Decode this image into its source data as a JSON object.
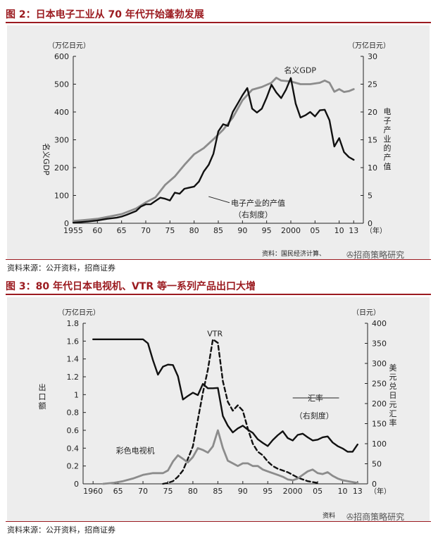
{
  "figure1": {
    "title": "图 2：日本电子工业从 70 年代开始蓬勃发展",
    "source": "资料来源：公开资料，招商证券",
    "credit": "资料：国民经济计算、",
    "watermark": "招商策略研究",
    "chart_data": {
      "type": "line",
      "y_left_label": "名义GDP",
      "y_left_unit": "（万亿日元）",
      "y_right_label": "电子产业的产值",
      "y_right_unit": "（万亿日元）",
      "x_unit": "（年）",
      "xlim": [
        1955,
        2015
      ],
      "ylim_left": [
        0,
        600
      ],
      "ylim_right": [
        0,
        30
      ],
      "x_ticks": [
        1955,
        1960,
        1965,
        1970,
        1975,
        1980,
        1985,
        1990,
        1995,
        2000,
        2005,
        2010,
        2013
      ],
      "x_tick_labels": [
        "1955",
        "60",
        "65",
        "70",
        "75",
        "80",
        "85",
        "90",
        "95",
        "2000",
        "05",
        "10",
        "13"
      ],
      "y_left_ticks": [
        0,
        100,
        200,
        300,
        400,
        500,
        600
      ],
      "y_right_ticks": [
        0,
        5,
        10,
        15,
        20,
        25,
        30
      ],
      "annotations": [
        {
          "text": "名义GDP"
        },
        {
          "text": "电子产业的产值"
        },
        {
          "text": "（右刻度）"
        }
      ],
      "series": [
        {
          "name": "名义GDP",
          "axis": "left",
          "color": "#8c8c8c",
          "x": [
            1955,
            1957,
            1960,
            1963,
            1965,
            1968,
            1970,
            1972,
            1974,
            1976,
            1978,
            1980,
            1982,
            1984,
            1986,
            1988,
            1990,
            1992,
            1994,
            1996,
            1997,
            1998,
            2000,
            2002,
            2004,
            2006,
            2007,
            2008,
            2009,
            2010,
            2011,
            2012,
            2013
          ],
          "y": [
            8,
            11,
            16,
            26,
            33,
            53,
            75,
            93,
            138,
            168,
            210,
            248,
            270,
            302,
            336,
            380,
            442,
            480,
            490,
            505,
            523,
            513,
            510,
            500,
            500,
            505,
            513,
            505,
            473,
            482,
            472,
            475,
            482
          ]
        },
        {
          "name": "电子产业的产值",
          "axis": "right",
          "color": "#111111",
          "x": [
            1955,
            1958,
            1960,
            1962,
            1964,
            1965,
            1966,
            1968,
            1969,
            1970,
            1971,
            1972,
            1973,
            1974,
            1975,
            1976,
            1977,
            1978,
            1979,
            1980,
            1981,
            1982,
            1983,
            1984,
            1985,
            1986,
            1987,
            1988,
            1989,
            1990,
            1991,
            1992,
            1993,
            1994,
            1995,
            1996,
            1997,
            1998,
            1999,
            2000,
            2001,
            2002,
            2003,
            2004,
            2005,
            2006,
            2007,
            2008,
            2009,
            2010,
            2011,
            2012,
            2013
          ],
          "y": [
            0.1,
            0.3,
            0.5,
            0.8,
            1.0,
            1.2,
            1.5,
            2.2,
            3.0,
            3.4,
            3.4,
            4.0,
            4.6,
            4.4,
            4.1,
            5.5,
            5.3,
            6.2,
            6.4,
            6.6,
            7.5,
            9.3,
            10.5,
            12.5,
            16.5,
            17.8,
            17.5,
            20.0,
            21.5,
            23.0,
            24.3,
            20.6,
            19.9,
            20.6,
            22.6,
            24.9,
            23.5,
            22.5,
            24.0,
            26.1,
            21.5,
            19.0,
            19.4,
            20.0,
            19.2,
            20.3,
            20.4,
            18.5,
            13.8,
            15.3,
            12.8,
            11.9,
            11.4
          ]
        }
      ]
    }
  },
  "figure2": {
    "title": "图 3：80 年代日本电视机、VTR 等一系列产品出口大增",
    "source": "资料来源：公开资料，招商证券",
    "credit": "资料",
    "watermark": "招商策略研究",
    "chart_data": {
      "type": "line",
      "y_left_label": "出口额",
      "y_left_unit": "（万亿日元）",
      "y_right_label": "美元兑日元汇率",
      "y_right_unit": "（日元）",
      "x_unit": "（年）",
      "xlim": [
        1958,
        2015
      ],
      "ylim_left": [
        0,
        1.8
      ],
      "ylim_right": [
        0,
        400
      ],
      "x_ticks": [
        1960,
        1965,
        1970,
        1975,
        1980,
        1985,
        1990,
        1995,
        2000,
        2005,
        2010,
        2013
      ],
      "x_tick_labels": [
        "1960",
        "65",
        "70",
        "75",
        "80",
        "85",
        "90",
        "95",
        "2000",
        "05",
        "10",
        "13"
      ],
      "y_left_ticks": [
        0,
        0.2,
        0.4,
        0.6,
        0.8,
        1.0,
        1.2,
        1.4,
        1.6,
        1.8
      ],
      "y_left_tick_labels": [
        "0",
        "0.2",
        "0.4",
        "0.6",
        "0.8",
        "1",
        "1.2",
        "1.4",
        "1.6",
        "1.8"
      ],
      "y_right_ticks": [
        0,
        50,
        100,
        150,
        200,
        250,
        300,
        350,
        400
      ],
      "annotations": [
        {
          "text": "VTR"
        },
        {
          "text": "汇率"
        },
        {
          "text": "（右刻度）"
        },
        {
          "text": "彩色电视机"
        }
      ],
      "series": [
        {
          "name": "汇率",
          "axis": "right",
          "color": "#111111",
          "style": "solid",
          "x": [
            1960,
            1965,
            1970,
            1971,
            1972,
            1973,
            1974,
            1975,
            1976,
            1977,
            1978,
            1979,
            1980,
            1981,
            1982,
            1983,
            1984,
            1985,
            1986,
            1987,
            1988,
            1989,
            1990,
            1991,
            1992,
            1993,
            1994,
            1995,
            1996,
            1997,
            1998,
            1999,
            2000,
            2001,
            2002,
            2003,
            2004,
            2005,
            2006,
            2007,
            2008,
            2009,
            2010,
            2011,
            2012,
            2013
          ],
          "y": [
            360,
            360,
            360,
            350,
            308,
            272,
            292,
            297,
            296,
            268,
            210,
            219,
            227,
            221,
            249,
            238,
            238,
            239,
            169,
            145,
            128,
            138,
            145,
            135,
            127,
            111,
            102,
            94,
            109,
            121,
            131,
            114,
            108,
            122,
            125,
            116,
            108,
            110,
            116,
            118,
            103,
            94,
            88,
            80,
            80,
            98
          ]
        },
        {
          "name": "VTR",
          "axis": "left",
          "color": "#111111",
          "style": "dashed",
          "x": [
            1974,
            1975,
            1976,
            1977,
            1978,
            1979,
            1980,
            1981,
            1982,
            1983,
            1984,
            1985,
            1986,
            1987,
            1988,
            1989,
            1990,
            1991,
            1992,
            1993,
            1994,
            1995,
            1996,
            1997,
            1998,
            1999,
            2000,
            2001,
            2002,
            2003,
            2004,
            2005
          ],
          "y": [
            0,
            0.01,
            0.03,
            0.08,
            0.15,
            0.28,
            0.42,
            0.72,
            1.02,
            1.28,
            1.62,
            1.58,
            1.15,
            0.92,
            0.82,
            0.88,
            0.82,
            0.62,
            0.45,
            0.36,
            0.32,
            0.25,
            0.2,
            0.17,
            0.15,
            0.13,
            0.1,
            0.07,
            0.05,
            0.03,
            0.02,
            0.01
          ]
        },
        {
          "name": "彩色电视机",
          "axis": "left",
          "color": "#8c8c8c",
          "style": "solid",
          "x": [
            1962,
            1964,
            1966,
            1968,
            1970,
            1972,
            1974,
            1975,
            1976,
            1977,
            1978,
            1979,
            1980,
            1981,
            1982,
            1983,
            1984,
            1985,
            1986,
            1987,
            1988,
            1989,
            1990,
            1991,
            1992,
            1993,
            1994,
            1995,
            1996,
            1997,
            1998,
            1999,
            2000,
            2001,
            2002,
            2003,
            2004,
            2005,
            2006,
            2007,
            2008,
            2009,
            2010,
            2011,
            2012,
            2013
          ],
          "y": [
            0,
            0.01,
            0.03,
            0.06,
            0.1,
            0.12,
            0.12,
            0.15,
            0.25,
            0.32,
            0.28,
            0.24,
            0.3,
            0.4,
            0.38,
            0.35,
            0.42,
            0.6,
            0.4,
            0.26,
            0.23,
            0.2,
            0.23,
            0.23,
            0.2,
            0.2,
            0.16,
            0.14,
            0.12,
            0.1,
            0.08,
            0.05,
            0.04,
            0.06,
            0.1,
            0.14,
            0.16,
            0.12,
            0.11,
            0.13,
            0.09,
            0.06,
            0.04,
            0.03,
            0.02,
            0.01
          ]
        }
      ]
    }
  }
}
